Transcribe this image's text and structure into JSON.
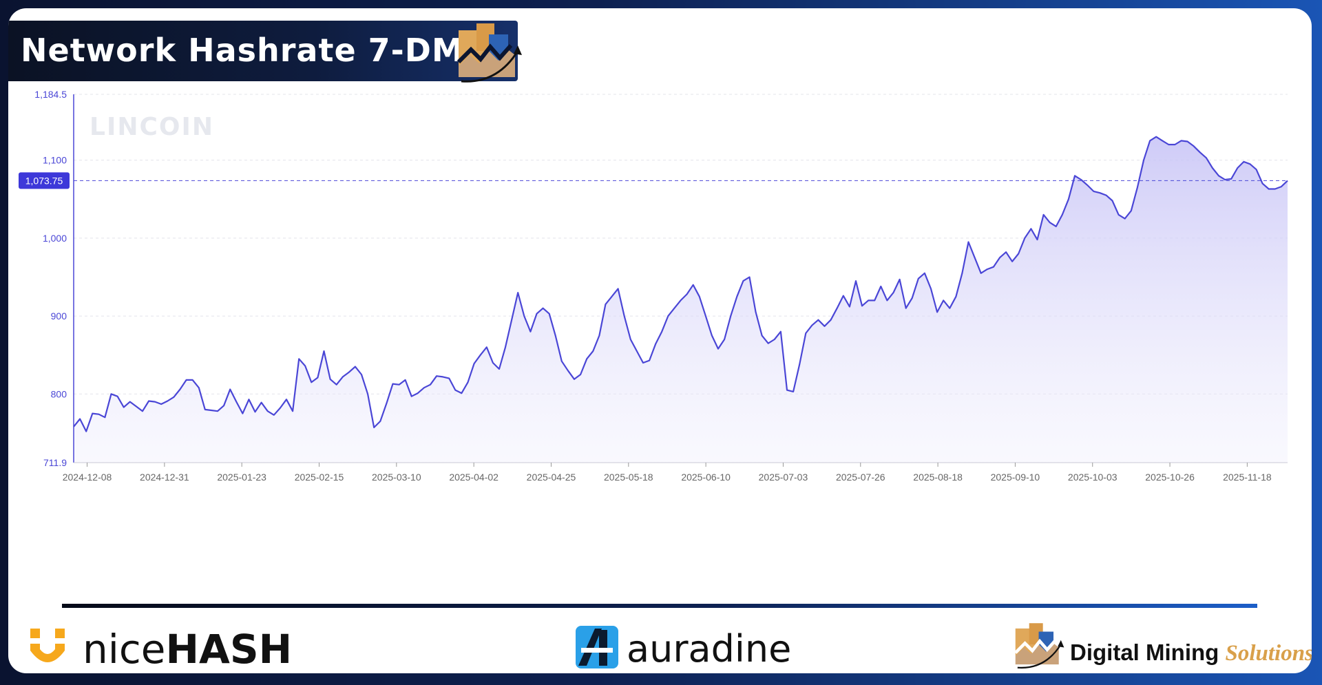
{
  "header": {
    "title": "Network Hashrate 7-DMA"
  },
  "watermark": "LINCOIN",
  "colors": {
    "line": "#4a46d6",
    "fill": "#c9c6f7",
    "crosshair": "#4a46d6",
    "badge": "#3d38d9",
    "axis_text": "#4a46d6",
    "tick_text": "#666666"
  },
  "icons": {
    "dms": "digital-mining-solutions-logo-icon",
    "nicehash": "nicehash-logo-icon",
    "auradine": "auradine-logo-icon"
  },
  "footer": {
    "nicehash_a": "nice",
    "nicehash_b": "HASH",
    "auradine": "auradine",
    "dms_a": "Digital Mining ",
    "dms_b": "Solutions"
  },
  "chart_data": {
    "type": "area",
    "title": "Network Hashrate 7-DMA",
    "ylim": [
      711.9,
      1184.5
    ],
    "y_ticks": [
      "1,184.5",
      "1,100",
      "1,000",
      "900",
      "800",
      "711.9"
    ],
    "y_tick_values": [
      1184.5,
      1100,
      1000,
      900,
      800,
      711.9
    ],
    "x_ticks": [
      "2024-12-08",
      "2024-12-31",
      "2025-01-23",
      "2025-02-15",
      "2025-03-10",
      "2025-04-02",
      "2025-04-25",
      "2025-05-18",
      "2025-06-10",
      "2025-07-03",
      "2025-07-26",
      "2025-08-18",
      "2025-09-10",
      "2025-10-03",
      "2025-10-26",
      "2025-11-18"
    ],
    "current_value_label": "1,073.75",
    "current_value": 1073.75,
    "grid": true,
    "x_start": "2024-12-04",
    "x_end": "2025-11-30",
    "values": [
      758,
      768,
      752,
      775,
      774,
      770,
      800,
      797,
      783,
      790,
      784,
      778,
      791,
      790,
      787,
      791,
      796,
      806,
      818,
      818,
      808,
      780,
      779,
      778,
      785,
      806,
      790,
      775,
      793,
      777,
      789,
      778,
      773,
      782,
      793,
      778,
      845,
      836,
      815,
      821,
      855,
      819,
      812,
      822,
      828,
      835,
      825,
      800,
      757,
      765,
      788,
      813,
      812,
      818,
      797,
      801,
      808,
      812,
      823,
      822,
      820,
      805,
      801,
      815,
      839,
      850,
      860,
      840,
      832,
      860,
      895,
      930,
      900,
      880,
      903,
      910,
      903,
      875,
      842,
      830,
      819,
      825,
      845,
      855,
      875,
      915,
      925,
      935,
      900,
      870,
      855,
      840,
      843,
      864,
      880,
      900,
      910,
      920,
      928,
      940,
      925,
      900,
      875,
      858,
      870,
      900,
      925,
      945,
      950,
      905,
      875,
      865,
      870,
      880,
      805,
      803,
      838,
      878,
      888,
      895,
      887,
      895,
      910,
      926,
      912,
      945,
      913,
      920,
      920,
      938,
      920,
      930,
      947,
      910,
      923,
      948,
      955,
      935,
      905,
      920,
      910,
      925,
      955,
      995,
      975,
      955,
      960,
      963,
      975,
      982,
      970,
      980,
      1000,
      1012,
      998,
      1030,
      1020,
      1015,
      1030,
      1050,
      1080,
      1075,
      1068,
      1060,
      1058,
      1055,
      1048,
      1030,
      1025,
      1035,
      1065,
      1100,
      1125,
      1130,
      1125,
      1120,
      1120,
      1125,
      1124,
      1118,
      1110,
      1103,
      1090,
      1080,
      1075,
      1076,
      1090,
      1098,
      1095,
      1088,
      1070,
      1063,
      1063,
      1066,
      1073.75
    ]
  }
}
